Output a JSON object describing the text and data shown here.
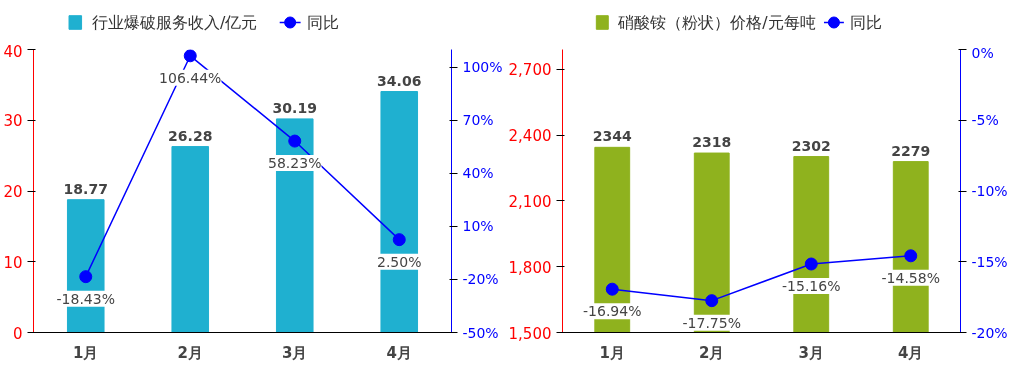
{
  "chart_data": [
    {
      "type": "bar",
      "categories": [
        "1月",
        "2月",
        "3月",
        "4月"
      ],
      "ylim": [
        0,
        40
      ],
      "yticks": [
        0,
        10,
        20,
        30,
        40
      ],
      "y2lim": [
        -50,
        110
      ],
      "y2ticks": [
        {
          "value": -50,
          "label": "-50%"
        },
        {
          "value": -20,
          "label": "-20%"
        },
        {
          "value": 10,
          "label": "10%"
        },
        {
          "value": 40,
          "label": "40%"
        },
        {
          "value": 70,
          "label": "70%"
        },
        {
          "value": 100,
          "label": "100%"
        }
      ],
      "legend": "top",
      "marker": "circle",
      "series": [
        {
          "name": "行业爆破服务收入/亿元",
          "color": "#1fb0d0",
          "values": [
            18.77,
            26.28,
            30.19,
            34.06
          ],
          "value_labels": [
            "18.77",
            "26.28",
            "30.19",
            "34.06"
          ]
        },
        {
          "name": "同比",
          "type": "line",
          "axis": "y2",
          "color": "#0000ff",
          "values": [
            -18.43,
            106.44,
            58.23,
            2.5
          ],
          "value_labels": [
            "-18.43%",
            "106.44%",
            "58.23%",
            "2.50%"
          ]
        }
      ]
    },
    {
      "type": "bar",
      "categories": [
        "1月",
        "2月",
        "3月",
        "4月"
      ],
      "ylim": [
        1500,
        2790
      ],
      "yticks": [
        {
          "value": 1500,
          "label": "1,500"
        },
        {
          "value": 1800,
          "label": "1,800"
        },
        {
          "value": 2100,
          "label": "2,100"
        },
        {
          "value": 2400,
          "label": "2,400"
        },
        {
          "value": 2700,
          "label": "2,700"
        }
      ],
      "y2lim": [
        -20,
        0
      ],
      "y2ticks": [
        {
          "value": -20,
          "label": "-20%"
        },
        {
          "value": -15,
          "label": "-15%"
        },
        {
          "value": -10,
          "label": "-10%"
        },
        {
          "value": -5,
          "label": "-5%"
        },
        {
          "value": 0,
          "label": "0%"
        }
      ],
      "legend": "top",
      "marker": "circle",
      "series": [
        {
          "name": "硝酸铵（粉状）价格/元每吨",
          "color": "#8fb21e",
          "values": [
            2344,
            2318,
            2302,
            2279
          ],
          "value_labels": [
            "2344",
            "2318",
            "2302",
            "2279"
          ]
        },
        {
          "name": "同比",
          "type": "line",
          "axis": "y2",
          "color": "#0000ff",
          "values": [
            -16.94,
            -17.75,
            -15.16,
            -14.58
          ],
          "value_labels": [
            "-16.94%",
            "-17.75%",
            "-15.16%",
            "-14.58%"
          ]
        }
      ]
    }
  ]
}
